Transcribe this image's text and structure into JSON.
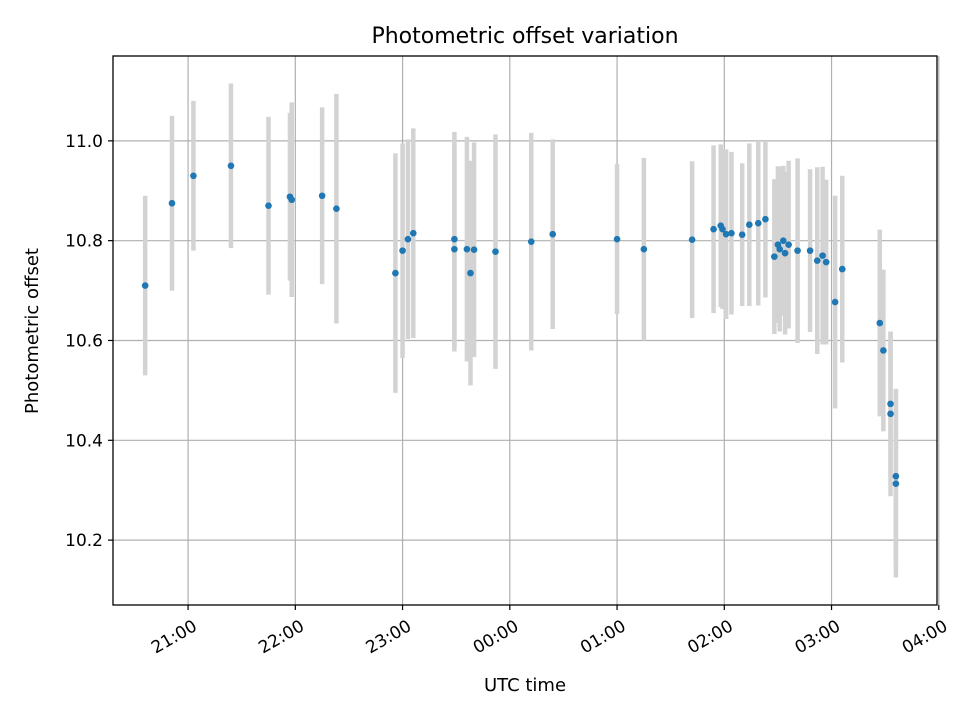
{
  "chart_data": {
    "type": "scatter",
    "title": "Photometric offset variation",
    "xlabel": "UTC time",
    "ylabel": "Photometric offset",
    "grid": true,
    "legend": "none",
    "x_ticks": [
      "21:00",
      "22:00",
      "23:00",
      "00:00",
      "01:00",
      "02:00",
      "03:00",
      "04:00"
    ],
    "y_ticks": [
      "10.2",
      "10.4",
      "10.6",
      "10.8",
      "11.0"
    ],
    "x_range": [
      "20:18",
      "03:59"
    ],
    "ylim": [
      10.07,
      11.17
    ],
    "colors": {
      "point": "#1f77b4",
      "errorbar": "#d3d3d3"
    },
    "series": [
      {
        "points": [
          {
            "time": "20:36",
            "y": 10.71,
            "err": 0.18
          },
          {
            "time": "20:51",
            "y": 10.875,
            "err": 0.175
          },
          {
            "time": "21:03",
            "y": 10.93,
            "err": 0.15
          },
          {
            "time": "21:24",
            "y": 10.95,
            "err": 0.165
          },
          {
            "time": "21:45",
            "y": 10.87,
            "err": 0.178
          },
          {
            "time": "21:57",
            "y": 10.888,
            "err": 0.168
          },
          {
            "time": "21:58",
            "y": 10.882,
            "err": 0.195
          },
          {
            "time": "22:15",
            "y": 10.89,
            "err": 0.177
          },
          {
            "time": "22:23",
            "y": 10.864,
            "err": 0.23
          },
          {
            "time": "22:56",
            "y": 10.735,
            "err": 0.24
          },
          {
            "time": "23:00",
            "y": 10.78,
            "err": 0.215
          },
          {
            "time": "23:03",
            "y": 10.803,
            "err": 0.2
          },
          {
            "time": "23:06",
            "y": 10.815,
            "err": 0.21
          },
          {
            "time": "23:29",
            "y": 10.803,
            "err": 0.215
          },
          {
            "time": "23:29",
            "y": 10.783,
            "err": 0.205
          },
          {
            "time": "23:36",
            "y": 10.783,
            "err": 0.225
          },
          {
            "time": "23:38",
            "y": 10.735,
            "err": 0.225
          },
          {
            "time": "23:40",
            "y": 10.782,
            "err": 0.215
          },
          {
            "time": "23:52",
            "y": 10.778,
            "err": 0.235
          },
          {
            "time": "00:12",
            "y": 10.798,
            "err": 0.218
          },
          {
            "time": "00:24",
            "y": 10.813,
            "err": 0.19
          },
          {
            "time": "01:00",
            "y": 10.803,
            "err": 0.15
          },
          {
            "time": "01:15",
            "y": 10.783,
            "err": 0.183
          },
          {
            "time": "01:42",
            "y": 10.802,
            "err": 0.157
          },
          {
            "time": "01:54",
            "y": 10.823,
            "err": 0.168
          },
          {
            "time": "01:58",
            "y": 10.83,
            "err": 0.163
          },
          {
            "time": "01:59",
            "y": 10.823,
            "err": 0.16
          },
          {
            "time": "02:01",
            "y": 10.813,
            "err": 0.17
          },
          {
            "time": "02:04",
            "y": 10.815,
            "err": 0.163
          },
          {
            "time": "02:10",
            "y": 10.812,
            "err": 0.143
          },
          {
            "time": "02:14",
            "y": 10.832,
            "err": 0.163
          },
          {
            "time": "02:19",
            "y": 10.835,
            "err": 0.165
          },
          {
            "time": "02:23",
            "y": 10.843,
            "err": 0.157
          },
          {
            "time": "02:28",
            "y": 10.768,
            "err": 0.155
          },
          {
            "time": "02:30",
            "y": 10.792,
            "err": 0.157
          },
          {
            "time": "02:31",
            "y": 10.783,
            "err": 0.165
          },
          {
            "time": "02:33",
            "y": 10.8,
            "err": 0.15
          },
          {
            "time": "02:34",
            "y": 10.775,
            "err": 0.163
          },
          {
            "time": "02:36",
            "y": 10.792,
            "err": 0.168
          },
          {
            "time": "02:41",
            "y": 10.78,
            "err": 0.185
          },
          {
            "time": "02:48",
            "y": 10.78,
            "err": 0.163
          },
          {
            "time": "02:52",
            "y": 10.76,
            "err": 0.187
          },
          {
            "time": "02:55",
            "y": 10.77,
            "err": 0.178
          },
          {
            "time": "02:57",
            "y": 10.757,
            "err": 0.165
          },
          {
            "time": "03:02",
            "y": 10.677,
            "err": 0.213
          },
          {
            "time": "03:06",
            "y": 10.743,
            "err": 0.187
          },
          {
            "time": "03:27",
            "y": 10.635,
            "err": 0.187
          },
          {
            "time": "03:29",
            "y": 10.58,
            "err": 0.162
          },
          {
            "time": "03:33",
            "y": 10.473,
            "err": 0.145
          },
          {
            "time": "03:33",
            "y": 10.453,
            "err": 0.165
          },
          {
            "time": "03:36",
            "y": 10.328,
            "err": 0.175
          },
          {
            "time": "03:36",
            "y": 10.313,
            "err": 0.188
          }
        ]
      }
    ]
  }
}
